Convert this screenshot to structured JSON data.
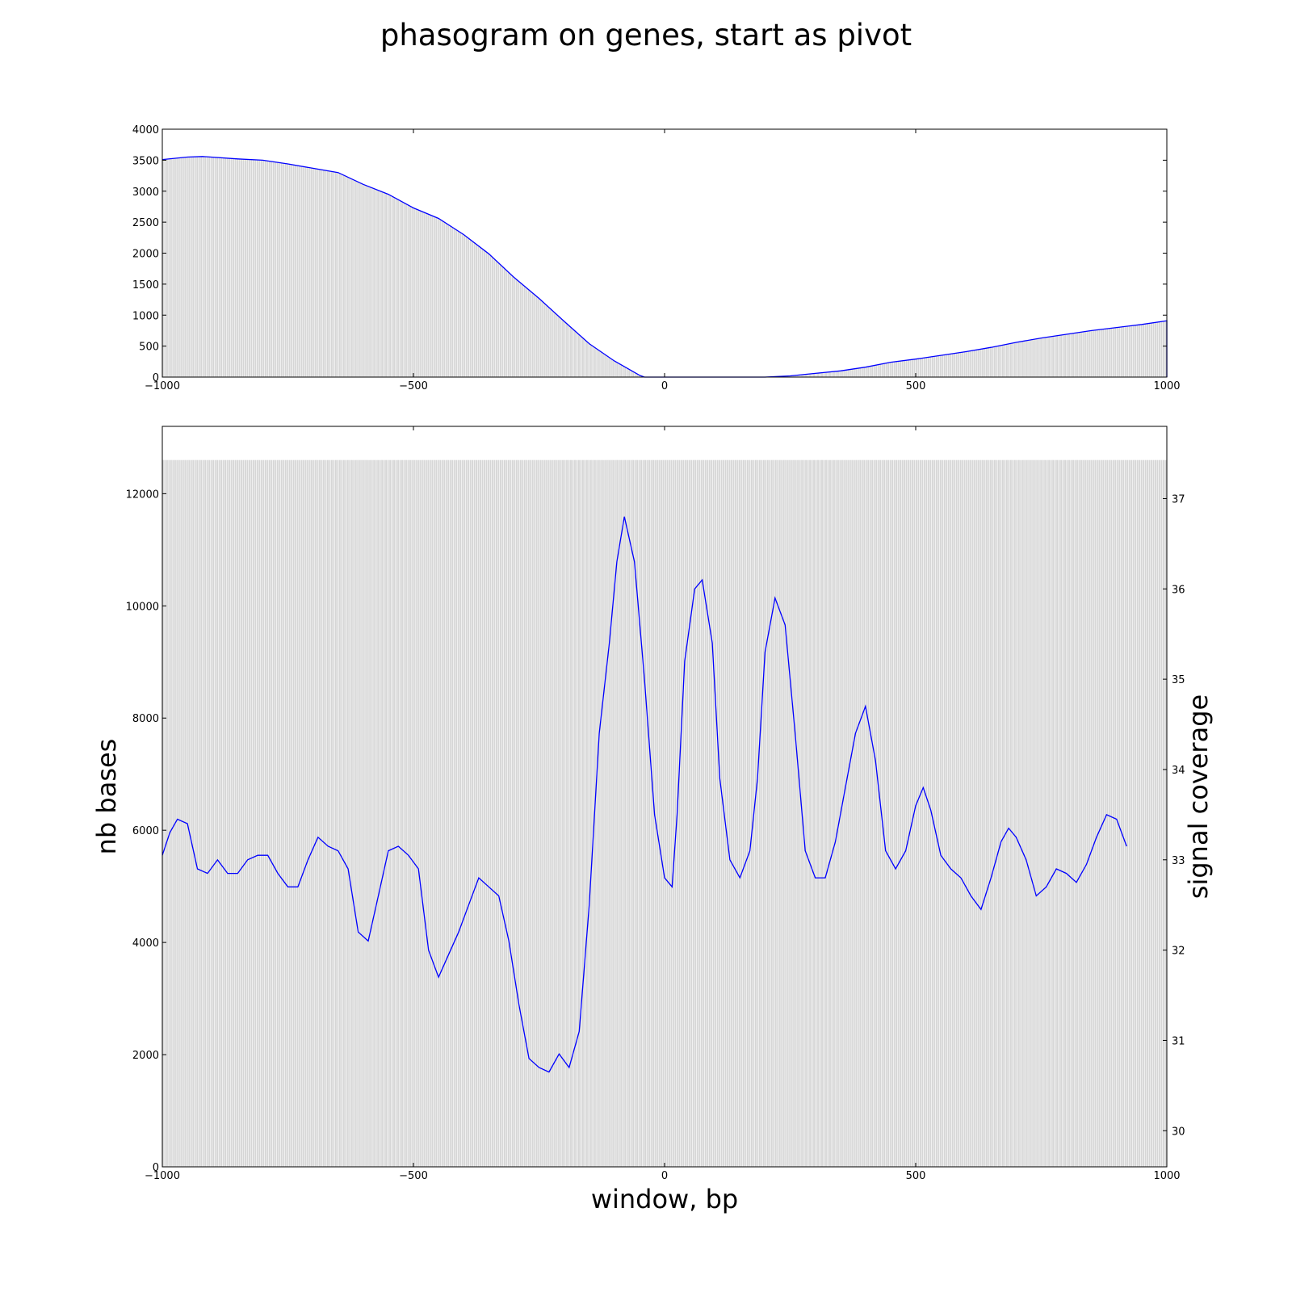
{
  "title": "phasogram on genes, start as pivot",
  "colors": {
    "line": "#0000ff",
    "fill": "#d6d6d6",
    "axis": "#000000"
  },
  "chart_data": [
    {
      "type": "area",
      "xlim": [
        -1000,
        1000
      ],
      "ylim": [
        0,
        4000
      ],
      "xticks": [
        "−1000",
        "−500",
        "0",
        "500",
        "1000"
      ],
      "xtick_values": [
        -1000,
        -500,
        0,
        500,
        1000
      ],
      "yticks": [
        "0",
        "500",
        "1000",
        "1500",
        "2000",
        "2500",
        "3000",
        "3500",
        "4000"
      ],
      "ytick_values": [
        0,
        500,
        1000,
        1500,
        2000,
        2500,
        3000,
        3500,
        4000
      ],
      "xlabel": "",
      "ylabel": "",
      "x": [
        -1000,
        -950,
        -920,
        -850,
        -800,
        -750,
        -700,
        -650,
        -600,
        -550,
        -500,
        -450,
        -400,
        -350,
        -300,
        -250,
        -200,
        -150,
        -100,
        -50,
        -40,
        0,
        100,
        200,
        250,
        300,
        350,
        400,
        450,
        500,
        550,
        600,
        650,
        700,
        750,
        800,
        850,
        900,
        950,
        1000
      ],
      "y": [
        3510,
        3550,
        3560,
        3520,
        3500,
        3440,
        3370,
        3300,
        3110,
        2950,
        2730,
        2560,
        2300,
        1990,
        1610,
        1270,
        900,
        540,
        260,
        30,
        0,
        0,
        0,
        0,
        20,
        60,
        100,
        160,
        240,
        290,
        350,
        410,
        480,
        560,
        630,
        690,
        750,
        800,
        850,
        910
      ]
    },
    {
      "type": "line",
      "xlim": [
        -1000,
        1000
      ],
      "ylim": [
        0,
        13200
      ],
      "y2lim": [
        29.6,
        37.8
      ],
      "xticks": [
        "−1000",
        "−500",
        "0",
        "500",
        "1000"
      ],
      "xtick_values": [
        -1000,
        -500,
        0,
        500,
        1000
      ],
      "yticks": [
        "0",
        "2000",
        "4000",
        "6000",
        "8000",
        "10000",
        "12000"
      ],
      "ytick_values": [
        0,
        2000,
        4000,
        6000,
        8000,
        10000,
        12000
      ],
      "y2ticks": [
        "30",
        "31",
        "32",
        "33",
        "34",
        "35",
        "36",
        "37"
      ],
      "y2tick_values": [
        30,
        31,
        32,
        33,
        34,
        35,
        36,
        37
      ],
      "xlabel": "window, bp",
      "ylabel": "nb bases",
      "y2label": "signal coverage",
      "bar_value": 12600,
      "x": [
        -1000,
        -985,
        -970,
        -950,
        -930,
        -910,
        -890,
        -870,
        -850,
        -830,
        -810,
        -790,
        -770,
        -750,
        -730,
        -710,
        -690,
        -670,
        -650,
        -630,
        -610,
        -590,
        -570,
        -550,
        -530,
        -510,
        -490,
        -470,
        -450,
        -430,
        -410,
        -390,
        -370,
        -350,
        -330,
        -310,
        -290,
        -270,
        -250,
        -230,
        -210,
        -190,
        -170,
        -150,
        -130,
        -110,
        -95,
        -80,
        -60,
        -40,
        -20,
        0,
        15,
        25,
        40,
        60,
        75,
        95,
        110,
        130,
        150,
        170,
        185,
        200,
        220,
        240,
        260,
        280,
        300,
        320,
        340,
        360,
        380,
        400,
        420,
        440,
        460,
        480,
        500,
        515,
        530,
        550,
        570,
        590,
        610,
        630,
        650,
        670,
        685,
        700,
        720,
        740,
        760,
        780,
        800,
        820,
        840,
        860,
        880,
        900,
        920,
        940,
        960,
        980,
        1000
      ],
      "y2": [
        33.05,
        33.3,
        33.45,
        33.4,
        32.9,
        32.85,
        33.0,
        32.85,
        32.85,
        33.0,
        33.05,
        33.05,
        32.85,
        32.7,
        32.7,
        33.0,
        33.25,
        33.15,
        33.1,
        32.9,
        32.2,
        32.1,
        32.6,
        33.1,
        33.15,
        33.05,
        32.9,
        32.0,
        31.7,
        31.95,
        32.2,
        32.5,
        32.8,
        32.7,
        32.6,
        32.1,
        31.4,
        30.8,
        30.7,
        30.65,
        30.85,
        30.7,
        31.1,
        32.5,
        34.4,
        35.4,
        36.3,
        36.8,
        36.3,
        35.0,
        33.5,
        32.8,
        32.7,
        33.5,
        35.2,
        36.0,
        36.1,
        35.4,
        33.9,
        33.0,
        32.8,
        33.1,
        33.9,
        35.3,
        35.9,
        35.6,
        34.4,
        33.1,
        32.8,
        32.8,
        33.2,
        33.8,
        34.4,
        34.7,
        34.1,
        33.1,
        32.9,
        33.1,
        33.6,
        33.8,
        33.55,
        33.05,
        32.9,
        32.8,
        32.6,
        32.45,
        32.8,
        33.2,
        33.35,
        33.25,
        33.0,
        32.6,
        32.7,
        32.9,
        32.85,
        32.75,
        32.95,
        33.25,
        33.5,
        33.45,
        33.15
      ]
    }
  ]
}
